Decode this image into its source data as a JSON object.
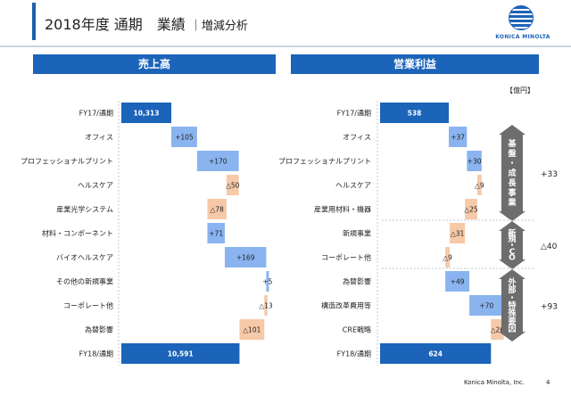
{
  "header": {
    "title": "2018年度 通期　業績",
    "subtitle": "｜増減分析",
    "logo_text": "KONICA MINOLTA"
  },
  "panels": {
    "sales_title": "売上高",
    "profit_title": "営業利益",
    "unit": "【億円】"
  },
  "colors": {
    "total": "#1c64b9",
    "increase": "#8ab4f0",
    "decrease": "#f6c9a8",
    "header": "#1c64b9"
  },
  "chart_data": [
    {
      "type": "bar",
      "subtype": "waterfall",
      "title": "売上高",
      "categories": [
        "FY17/通期",
        "オフィス",
        "プロフェッショナルプリント",
        "ヘルスケア",
        "産業光学システム",
        "材料・コンポーネント",
        "バイオヘルスケア",
        "その他の新規事業",
        "コーポレート他",
        "為替影響",
        "FY18/通期"
      ],
      "values": [
        10313,
        105,
        170,
        -50,
        -78,
        71,
        169,
        5,
        -13,
        -101,
        10591
      ],
      "labels": [
        "10,313",
        "+105",
        "+170",
        "△50",
        "△78",
        "+71",
        "+169",
        "+5",
        "△13",
        "△101",
        "10,591"
      ],
      "kinds": [
        "total",
        "delta",
        "delta",
        "delta",
        "delta",
        "delta",
        "delta",
        "delta",
        "delta",
        "delta",
        "total"
      ]
    },
    {
      "type": "bar",
      "subtype": "waterfall",
      "title": "営業利益",
      "categories": [
        "FY17/通期",
        "オフィス",
        "プロフェッショナルプリント",
        "ヘルスケア",
        "産業用材料・機器",
        "新規事業",
        "コーポレート他",
        "為替影響",
        "構造改革費用等",
        "CRE戦略",
        "FY18/通期"
      ],
      "values": [
        538,
        37,
        30,
        -9,
        -25,
        -31,
        -9,
        49,
        70,
        -26,
        624
      ],
      "labels": [
        "538",
        "+37",
        "+30",
        "△9",
        "△25",
        "△31",
        "△9",
        "+49",
        "+70",
        "△26",
        "624"
      ],
      "kinds": [
        "total",
        "delta",
        "delta",
        "delta",
        "delta",
        "delta",
        "delta",
        "delta",
        "delta",
        "delta",
        "total"
      ],
      "groups": [
        {
          "label": "基盤・成長事業",
          "total": "+33"
        },
        {
          "label": "新規・CO",
          "total": "△40"
        },
        {
          "label": "外部・特殊要因",
          "total": "+93"
        }
      ]
    }
  ],
  "footer": {
    "company": "Konica Minolta, Inc.",
    "page": "4"
  }
}
